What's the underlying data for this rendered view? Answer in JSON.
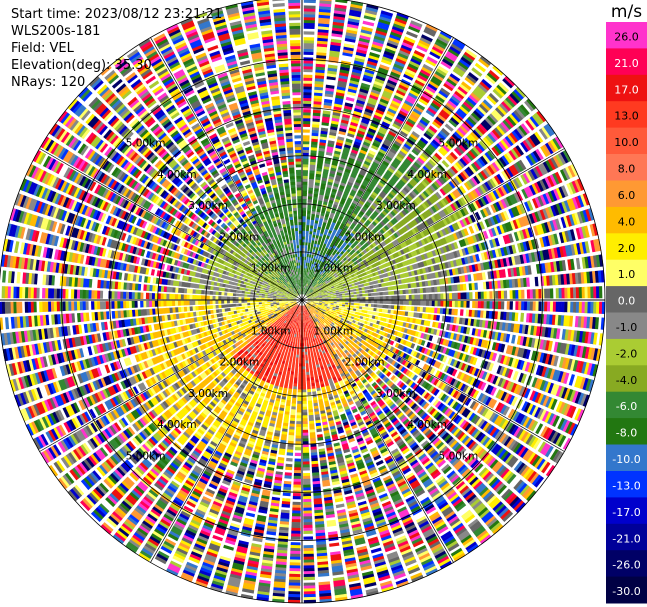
{
  "header": {
    "start_time": "Start time: 2023/08/12 23:21:21",
    "instrument": "WLS200s-181",
    "field": "Field: VEL",
    "elevation": "Elevation(deg): 35.30",
    "nrays": "NRays: 120"
  },
  "chart_data": {
    "type": "heatmap",
    "projection": "polar-ppi",
    "field": "VEL",
    "units": "m/s",
    "n_rays": 120,
    "range_rings_km": [
      1.0,
      2.0,
      3.0,
      4.0,
      5.0
    ],
    "range_ring_labels": [
      "1.00km",
      "2.00km",
      "3.00km",
      "4.00km",
      "5.00km"
    ],
    "max_range_km": 6.3,
    "colorbar": {
      "title": "m/s",
      "tick_labels": [
        "26.0",
        "21.0",
        "17.0",
        "13.0",
        "10.0",
        "8.0",
        "6.0",
        "4.0",
        "2.0",
        "1.0",
        "0.0",
        "-1.0",
        "-2.0",
        "-4.0",
        "-6.0",
        "-8.0",
        "-10.0",
        "-13.0",
        "-17.0",
        "-21.0",
        "-26.0",
        "-30.0"
      ],
      "colors": [
        "#ff33cc",
        "#ff0055",
        "#ee1111",
        "#ff3a20",
        "#ff5a3a",
        "#ff7755",
        "#ff9933",
        "#ffbb00",
        "#ffee00",
        "#ffff66",
        "#666666",
        "#888888",
        "#aacc33",
        "#88aa22",
        "#338833",
        "#227711",
        "#3377cc",
        "#0033ff",
        "#0000cc",
        "#000099",
        "#000066",
        "#000044"
      ]
    },
    "description_sectors": [
      {
        "az_from": 300,
        "az_to": 60,
        "range_km": [
          0.0,
          2.5
        ],
        "velocity_ms": -6.0
      },
      {
        "az_from": 100,
        "az_to": 260,
        "range_km": [
          0.0,
          2.2
        ],
        "velocity_ms": 8.0
      },
      {
        "az_from": 240,
        "az_to": 300,
        "range_km": [
          1.0,
          3.5
        ],
        "velocity_ms": 4.0
      }
    ]
  }
}
